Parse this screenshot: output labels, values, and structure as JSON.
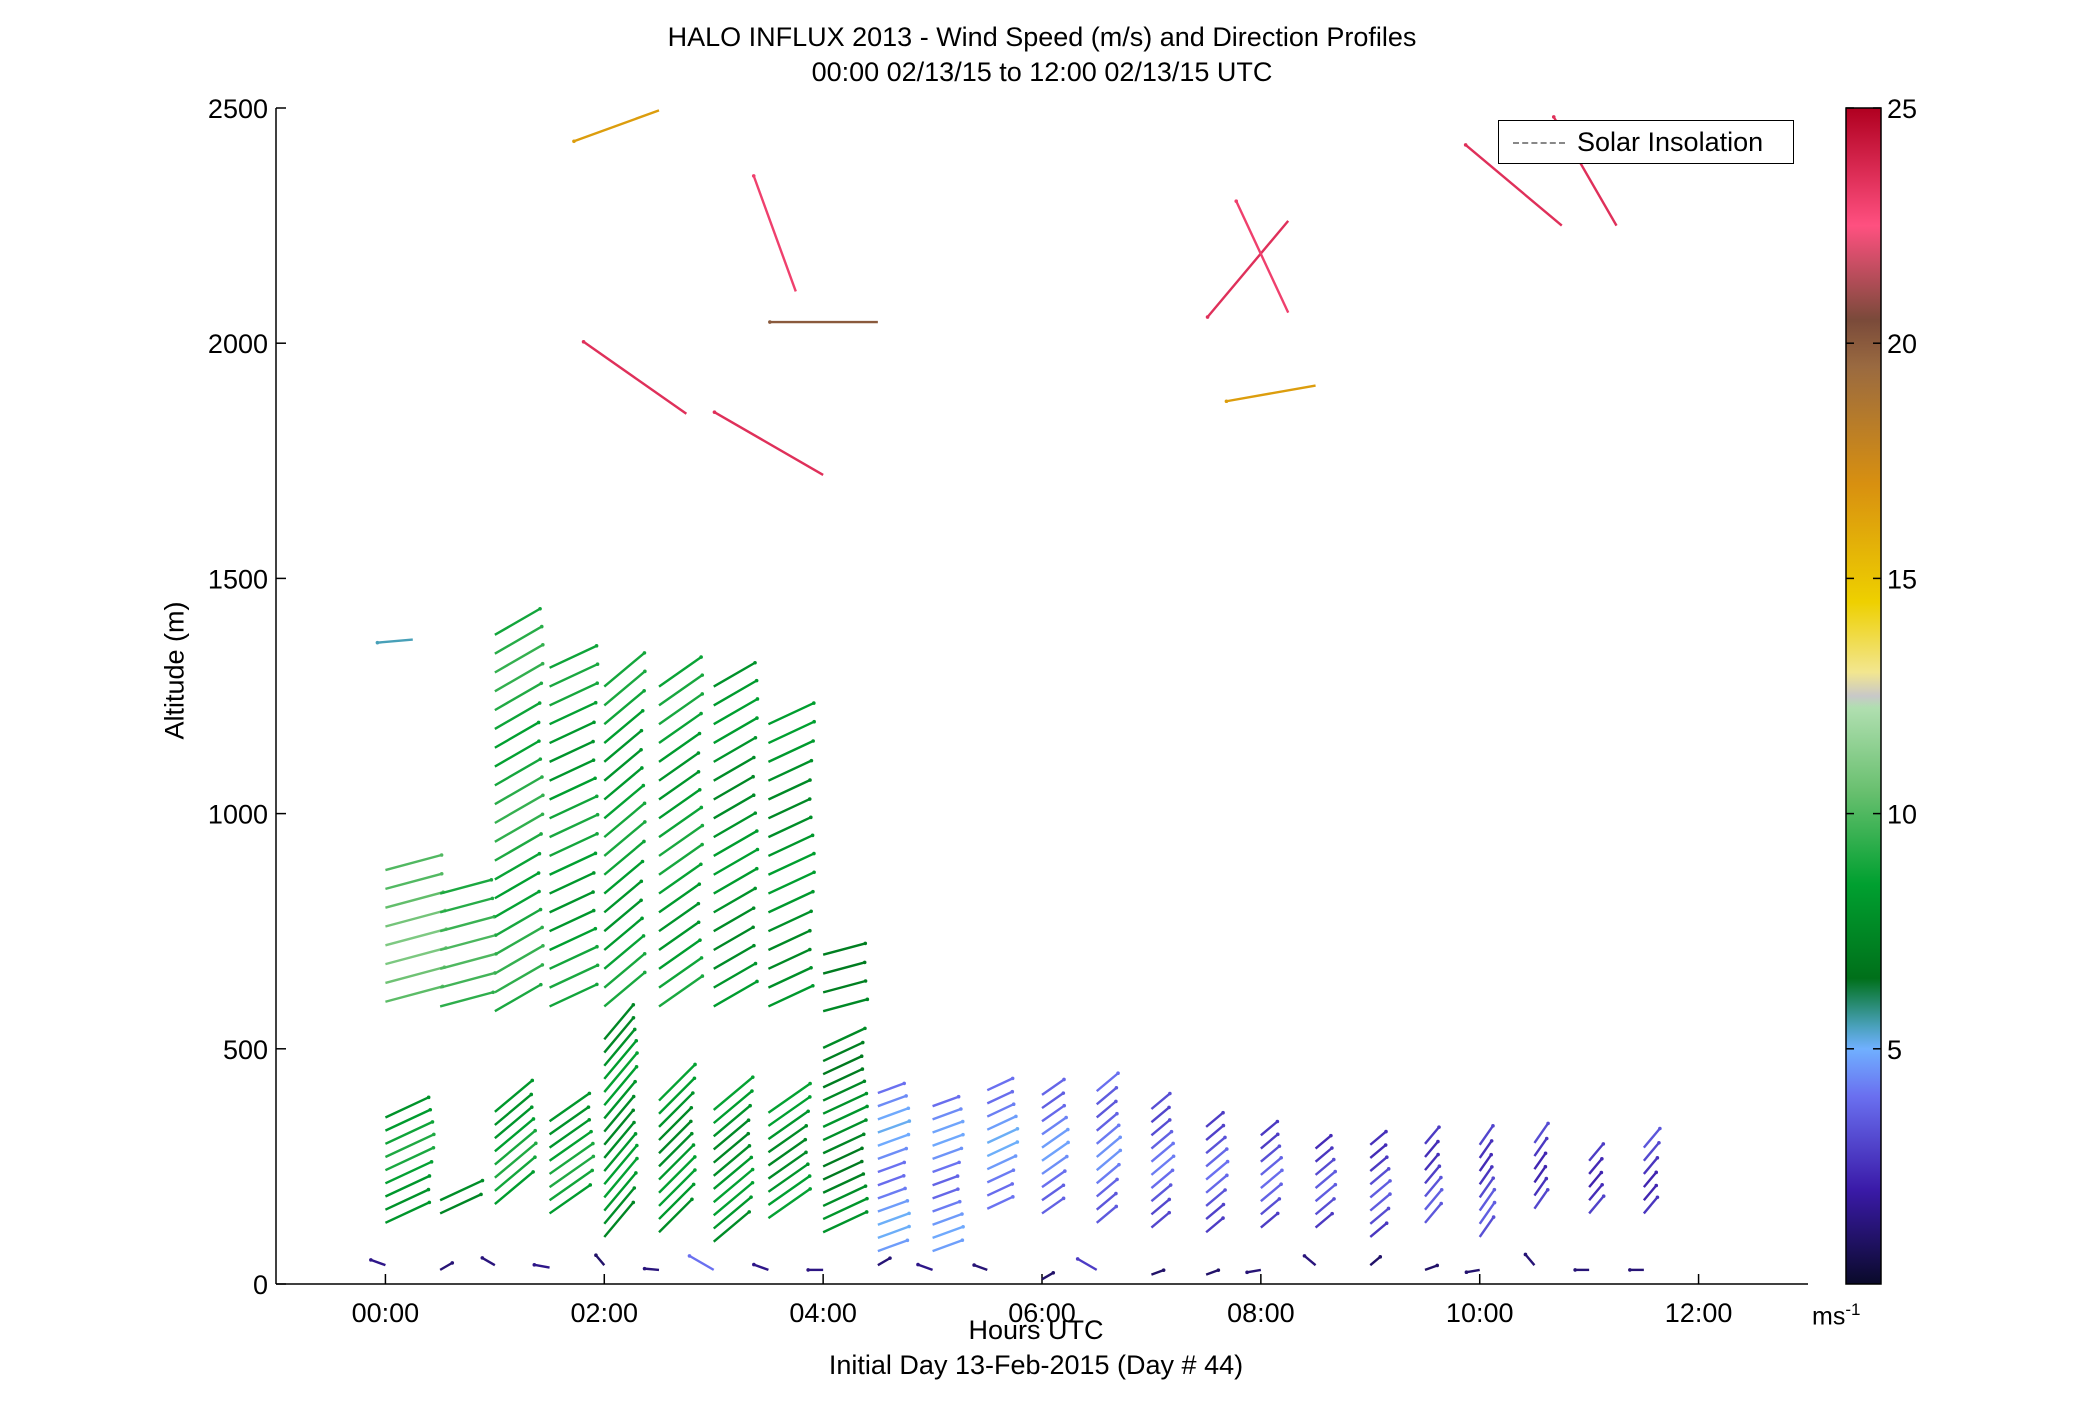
{
  "title_line1": "HALO INFLUX 2013 - Wind Speed (m/s) and Direction Profiles",
  "title_line2": "00:00 02/13/15 to 12:00 02/13/15  UTC",
  "xlabel": "Hours UTC",
  "xlabel2": "Initial Day 13-Feb-2015 (Day # 44)",
  "ylabel": "Altitude (m)",
  "legend": {
    "label": "Solar Insolation",
    "style": "dashed",
    "placement": "top-right"
  },
  "colorbar": {
    "unit_label": "ms",
    "unit_exp": "-1",
    "ticks": [
      "5",
      "10",
      "15",
      "20",
      "25"
    ],
    "range": [
      0,
      25
    ]
  },
  "chart_data": {
    "type": "scatter",
    "subtype": "wind-barb / arrow field",
    "x_unit": "hours UTC",
    "x_ticks": [
      "00:00",
      "02:00",
      "04:00",
      "06:00",
      "08:00",
      "10:00",
      "12:00"
    ],
    "xlim": [
      -1,
      13
    ],
    "y_unit": "m",
    "y_ticks": [
      "0",
      "500",
      "1000",
      "1500",
      "2000",
      "2500"
    ],
    "ylim": [
      0,
      2500
    ],
    "grid": false,
    "colormap": "speed (m/s)",
    "columns": [
      {
        "t": 0.0,
        "h0": 130,
        "h1": 370,
        "dir": 315,
        "speed": 8.5,
        "h2": 600,
        "h3": 900,
        "speed2": 10.5
      },
      {
        "t": 0.5,
        "h0": 150,
        "h1": 190,
        "dir": 315,
        "speed": 8.0,
        "h2": 590,
        "h3": 830,
        "speed2": 9.5
      },
      {
        "t": 1.0,
        "h0": 170,
        "h1": 380,
        "dir": 300,
        "speed": 8.5,
        "h2": 580,
        "h3": 1380,
        "speed2": 9.0
      },
      {
        "t": 1.5,
        "h0": 150,
        "h1": 370,
        "dir": 305,
        "speed": 8.5,
        "h2": 590,
        "h3": 1340,
        "speed2": 8.5
      },
      {
        "t": 2.0,
        "h0": 100,
        "h1": 520,
        "dir": 290,
        "speed": 8.0,
        "h2": 590,
        "h3": 1300,
        "speed2": 8.5
      },
      {
        "t": 2.5,
        "h0": 110,
        "h1": 390,
        "dir": 295,
        "speed": 8.0,
        "h2": 590,
        "h3": 1300,
        "speed2": 8.5
      },
      {
        "t": 3.0,
        "h0": 90,
        "h1": 380,
        "dir": 300,
        "speed": 8.0,
        "h2": 590,
        "h3": 1300,
        "speed2": 8.0
      },
      {
        "t": 3.5,
        "h0": 140,
        "h1": 380,
        "dir": 305,
        "speed": 8.0,
        "h2": 590,
        "h3": 1220,
        "speed2": 8.0
      },
      {
        "t": 4.0,
        "h0": 110,
        "h1": 520,
        "dir": 315,
        "speed": 7.5,
        "h2": 580,
        "h3": 710,
        "speed2": 7.5
      },
      {
        "t": 4.5,
        "h0": 70,
        "h1": 420,
        "dir": 320,
        "speed": 4.5
      },
      {
        "t": 5.0,
        "h0": 70,
        "h1": 400,
        "dir": 320,
        "speed": 4.3
      },
      {
        "t": 5.5,
        "h0": 160,
        "h1": 420,
        "dir": 315,
        "speed": 4.5
      },
      {
        "t": 6.0,
        "h0": 150,
        "h1": 410,
        "dir": 305,
        "speed": 4.2
      },
      {
        "t": 6.5,
        "h0": 130,
        "h1": 410,
        "dir": 300,
        "speed": 4.0
      },
      {
        "t": 7.0,
        "h0": 120,
        "h1": 380,
        "dir": 300,
        "speed": 3.6
      },
      {
        "t": 7.5,
        "h0": 110,
        "h1": 360,
        "dir": 300,
        "speed": 3.4
      },
      {
        "t": 8.0,
        "h0": 120,
        "h1": 330,
        "dir": 300,
        "speed": 3.3
      },
      {
        "t": 8.5,
        "h0": 120,
        "h1": 310,
        "dir": 300,
        "speed": 3.0
      },
      {
        "t": 9.0,
        "h0": 100,
        "h1": 300,
        "dir": 300,
        "speed": 3.0
      },
      {
        "t": 9.5,
        "h0": 130,
        "h1": 300,
        "dir": 290,
        "speed": 3.0
      },
      {
        "t": 10.0,
        "h0": 100,
        "h1": 300,
        "dir": 285,
        "speed": 3.0
      },
      {
        "t": 10.5,
        "h0": 160,
        "h1": 310,
        "dir": 285,
        "speed": 2.8
      },
      {
        "t": 11.0,
        "h0": 150,
        "h1": 280,
        "dir": 290,
        "speed": 2.8
      },
      {
        "t": 11.5,
        "h0": 150,
        "h1": 300,
        "dir": 290,
        "speed": 2.8
      }
    ],
    "isolated": [
      {
        "t": 0.25,
        "h": 1370,
        "dir": 265,
        "speed": 5.5
      },
      {
        "t": 2.5,
        "h": 2495,
        "dir": 250,
        "speed": 16.5
      },
      {
        "t": 3.75,
        "h": 2110,
        "dir": 340,
        "speed": 23
      },
      {
        "t": 4.5,
        "h": 2045,
        "dir": 270,
        "speed": 20
      },
      {
        "t": 2.75,
        "h": 1850,
        "dir": 305,
        "speed": 23.5
      },
      {
        "t": 4.0,
        "h": 1720,
        "dir": 300,
        "speed": 23.5
      },
      {
        "t": 8.25,
        "h": 2260,
        "dir": 220,
        "speed": 23.5
      },
      {
        "t": 8.25,
        "h": 2065,
        "dir": 335,
        "speed": 23
      },
      {
        "t": 8.5,
        "h": 1910,
        "dir": 260,
        "speed": 16.5
      },
      {
        "t": 10.75,
        "h": 2250,
        "dir": 310,
        "speed": 23.5
      },
      {
        "t": 11.25,
        "h": 2250,
        "dir": 330,
        "speed": 23.5
      }
    ],
    "surface": [
      {
        "t": 0.0,
        "h": 40,
        "dir": 290,
        "speed": 1.5
      },
      {
        "t": 0.5,
        "h": 30,
        "dir": 60,
        "speed": 1.2
      },
      {
        "t": 1.0,
        "h": 40,
        "dir": 300,
        "speed": 1.3
      },
      {
        "t": 1.5,
        "h": 35,
        "dir": 280,
        "speed": 1.5
      },
      {
        "t": 2.0,
        "h": 40,
        "dir": 320,
        "speed": 1.0
      },
      {
        "t": 2.5,
        "h": 30,
        "dir": 275,
        "speed": 1.3
      },
      {
        "t": 3.0,
        "h": 30,
        "dir": 300,
        "speed": 4.0
      },
      {
        "t": 3.5,
        "h": 30,
        "dir": 290,
        "speed": 1.5
      },
      {
        "t": 4.0,
        "h": 30,
        "dir": 270,
        "speed": 1.4
      },
      {
        "t": 4.5,
        "h": 40,
        "dir": 60,
        "speed": 1.2
      },
      {
        "t": 5.0,
        "h": 30,
        "dir": 290,
        "speed": 1.5
      },
      {
        "t": 5.5,
        "h": 30,
        "dir": 290,
        "speed": 1.2
      },
      {
        "t": 6.0,
        "h": 10,
        "dir": 60,
        "speed": 1.0
      },
      {
        "t": 6.5,
        "h": 30,
        "dir": 300,
        "speed": 2.8
      },
      {
        "t": 7.0,
        "h": 20,
        "dir": 70,
        "speed": 1.0
      },
      {
        "t": 7.5,
        "h": 20,
        "dir": 70,
        "speed": 1.0
      },
      {
        "t": 8.0,
        "h": 30,
        "dir": 260,
        "speed": 1.2
      },
      {
        "t": 8.5,
        "h": 40,
        "dir": 310,
        "speed": 1.3
      },
      {
        "t": 9.0,
        "h": 40,
        "dir": 50,
        "speed": 1.0
      },
      {
        "t": 9.5,
        "h": 30,
        "dir": 70,
        "speed": 1.0
      },
      {
        "t": 10.0,
        "h": 30,
        "dir": 260,
        "speed": 1.1
      },
      {
        "t": 10.5,
        "h": 40,
        "dir": 320,
        "speed": 1.2
      },
      {
        "t": 11.0,
        "h": 30,
        "dir": 270,
        "speed": 1.2
      },
      {
        "t": 11.5,
        "h": 30,
        "dir": 270,
        "speed": 1.2
      }
    ]
  }
}
